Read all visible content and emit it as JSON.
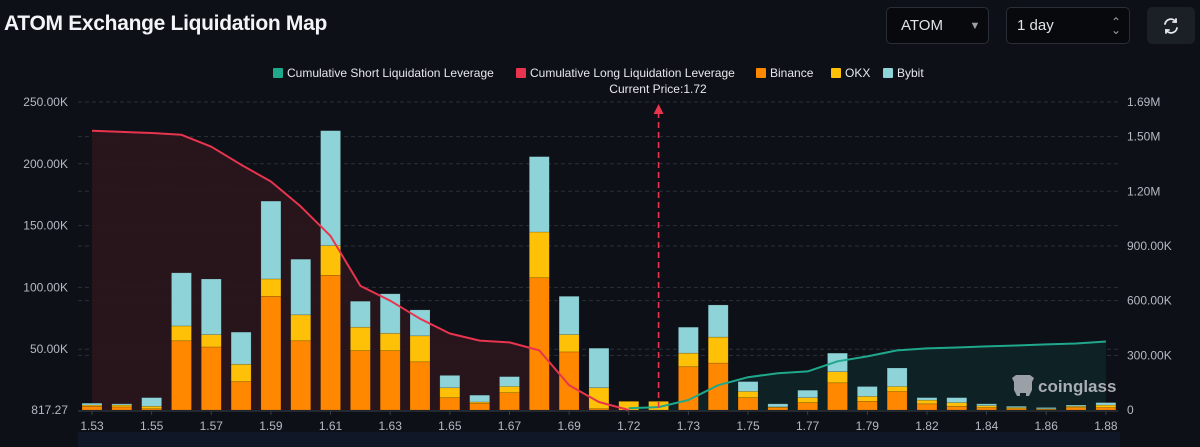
{
  "header": {
    "title": "ATOM Exchange Liquidation Map",
    "symbol_select": {
      "value": "ATOM",
      "icon": "caret-down-icon"
    },
    "period_select": {
      "value": "1 day",
      "icon": "up-down-chevron-icon"
    },
    "refresh_icon": "refresh-icon"
  },
  "watermark": "coinglass",
  "chart_data": {
    "type": "bar",
    "stacked": true,
    "current_price_label": "Current Price:1.72",
    "current_price_index": 19,
    "legend": [
      "Cumulative Short Liquidation Leverage",
      "Cumulative Long Liquidation Leverage",
      "Binance",
      "OKX",
      "Bybit"
    ],
    "legend_position": "top-center",
    "x_tick_labels": [
      "1.53",
      "1.55",
      "1.57",
      "1.59",
      "1.61",
      "1.63",
      "1.65",
      "1.67",
      "1.69",
      "1.72",
      "1.73",
      "1.75",
      "1.77",
      "1.79",
      "1.82",
      "1.84",
      "1.86",
      "1.88"
    ],
    "categories": [
      "1.53",
      "1.54",
      "1.55",
      "1.56",
      "1.57",
      "1.58",
      "1.59",
      "1.60",
      "1.61",
      "1.62",
      "1.63",
      "1.64",
      "1.65",
      "1.66",
      "1.67",
      "1.68",
      "1.69",
      "1.70",
      "1.72",
      "1.72",
      "1.73",
      "1.74",
      "1.75",
      "1.76",
      "1.77",
      "1.78",
      "1.78",
      "1.79",
      "1.82",
      "1.81",
      "1.82",
      "1.83",
      "1.84",
      "1.85",
      "1.86"
    ],
    "left_axis": {
      "ticks": [
        "817.27",
        "50.00K",
        "100.00K",
        "150.00K",
        "200.00K",
        "250.00K"
      ],
      "min": 817.27,
      "max": 250000
    },
    "right_axis": {
      "ticks": [
        "0",
        "300.00K",
        "600.00K",
        "900.00K",
        "1.20M",
        "1.50M",
        "1.69M"
      ],
      "min": 0,
      "max": 1690000
    },
    "grid": true,
    "colors": {
      "binance": "#ff8800",
      "okx": "#ffc107",
      "bybit": "#8ed3d8",
      "short": "#1fa88c",
      "long": "#e8344e"
    },
    "series": [
      {
        "name": "Binance",
        "axis": "left",
        "values": [
          3000,
          2500,
          1000,
          56000,
          51000,
          23000,
          92000,
          56000,
          109000,
          48000,
          48000,
          39000,
          10000,
          5500,
          14000,
          107000,
          47000,
          1000,
          0,
          0,
          35000,
          38000,
          10000,
          2000,
          6000,
          22000,
          7000,
          15000,
          5000,
          3000,
          2000,
          1000,
          500,
          2000,
          2000
        ]
      },
      {
        "name": "OKX",
        "axis": "left",
        "values": [
          1000,
          1500,
          2000,
          12000,
          10000,
          14000,
          14000,
          21000,
          24000,
          19000,
          14000,
          21000,
          8000,
          1000,
          5000,
          37000,
          14000,
          17000,
          7000,
          7000,
          11000,
          21000,
          5000,
          500,
          4000,
          9000,
          4000,
          4000,
          3000,
          3000,
          1500,
          1000,
          500,
          1000,
          2000
        ]
      },
      {
        "name": "Bybit",
        "axis": "left",
        "values": [
          1500,
          1000,
          7000,
          43000,
          45000,
          26000,
          63000,
          45000,
          93000,
          21000,
          32000,
          21000,
          10000,
          5500,
          8000,
          61000,
          31000,
          32000,
          0,
          0,
          21000,
          26000,
          8000,
          2500,
          6000,
          15000,
          8000,
          15000,
          2000,
          4000,
          1500,
          1000,
          1000,
          1000,
          2000
        ]
      },
      {
        "name": "Cumulative Long Liquidation Leverage",
        "axis": "right",
        "type": "line",
        "values": [
          1532000,
          1526000,
          1520000,
          1510000,
          1445000,
          1346000,
          1254000,
          1117000,
          954000,
          681000,
          600000,
          501000,
          420000,
          381000,
          371000,
          327000,
          136000,
          44000,
          0,
          null,
          null,
          null,
          null,
          null,
          null,
          null,
          null,
          null,
          null,
          null,
          null,
          null,
          null,
          null,
          null
        ]
      },
      {
        "name": "Cumulative Short Liquidation Leverage",
        "axis": "right",
        "type": "line",
        "values": [
          null,
          null,
          null,
          null,
          null,
          null,
          null,
          null,
          null,
          null,
          null,
          null,
          null,
          null,
          null,
          null,
          null,
          null,
          10000,
          16000,
          55000,
          136000,
          180000,
          202000,
          212000,
          267000,
          294000,
          327000,
          338000,
          343000,
          349000,
          354000,
          360000,
          365000,
          376000
        ]
      }
    ]
  }
}
